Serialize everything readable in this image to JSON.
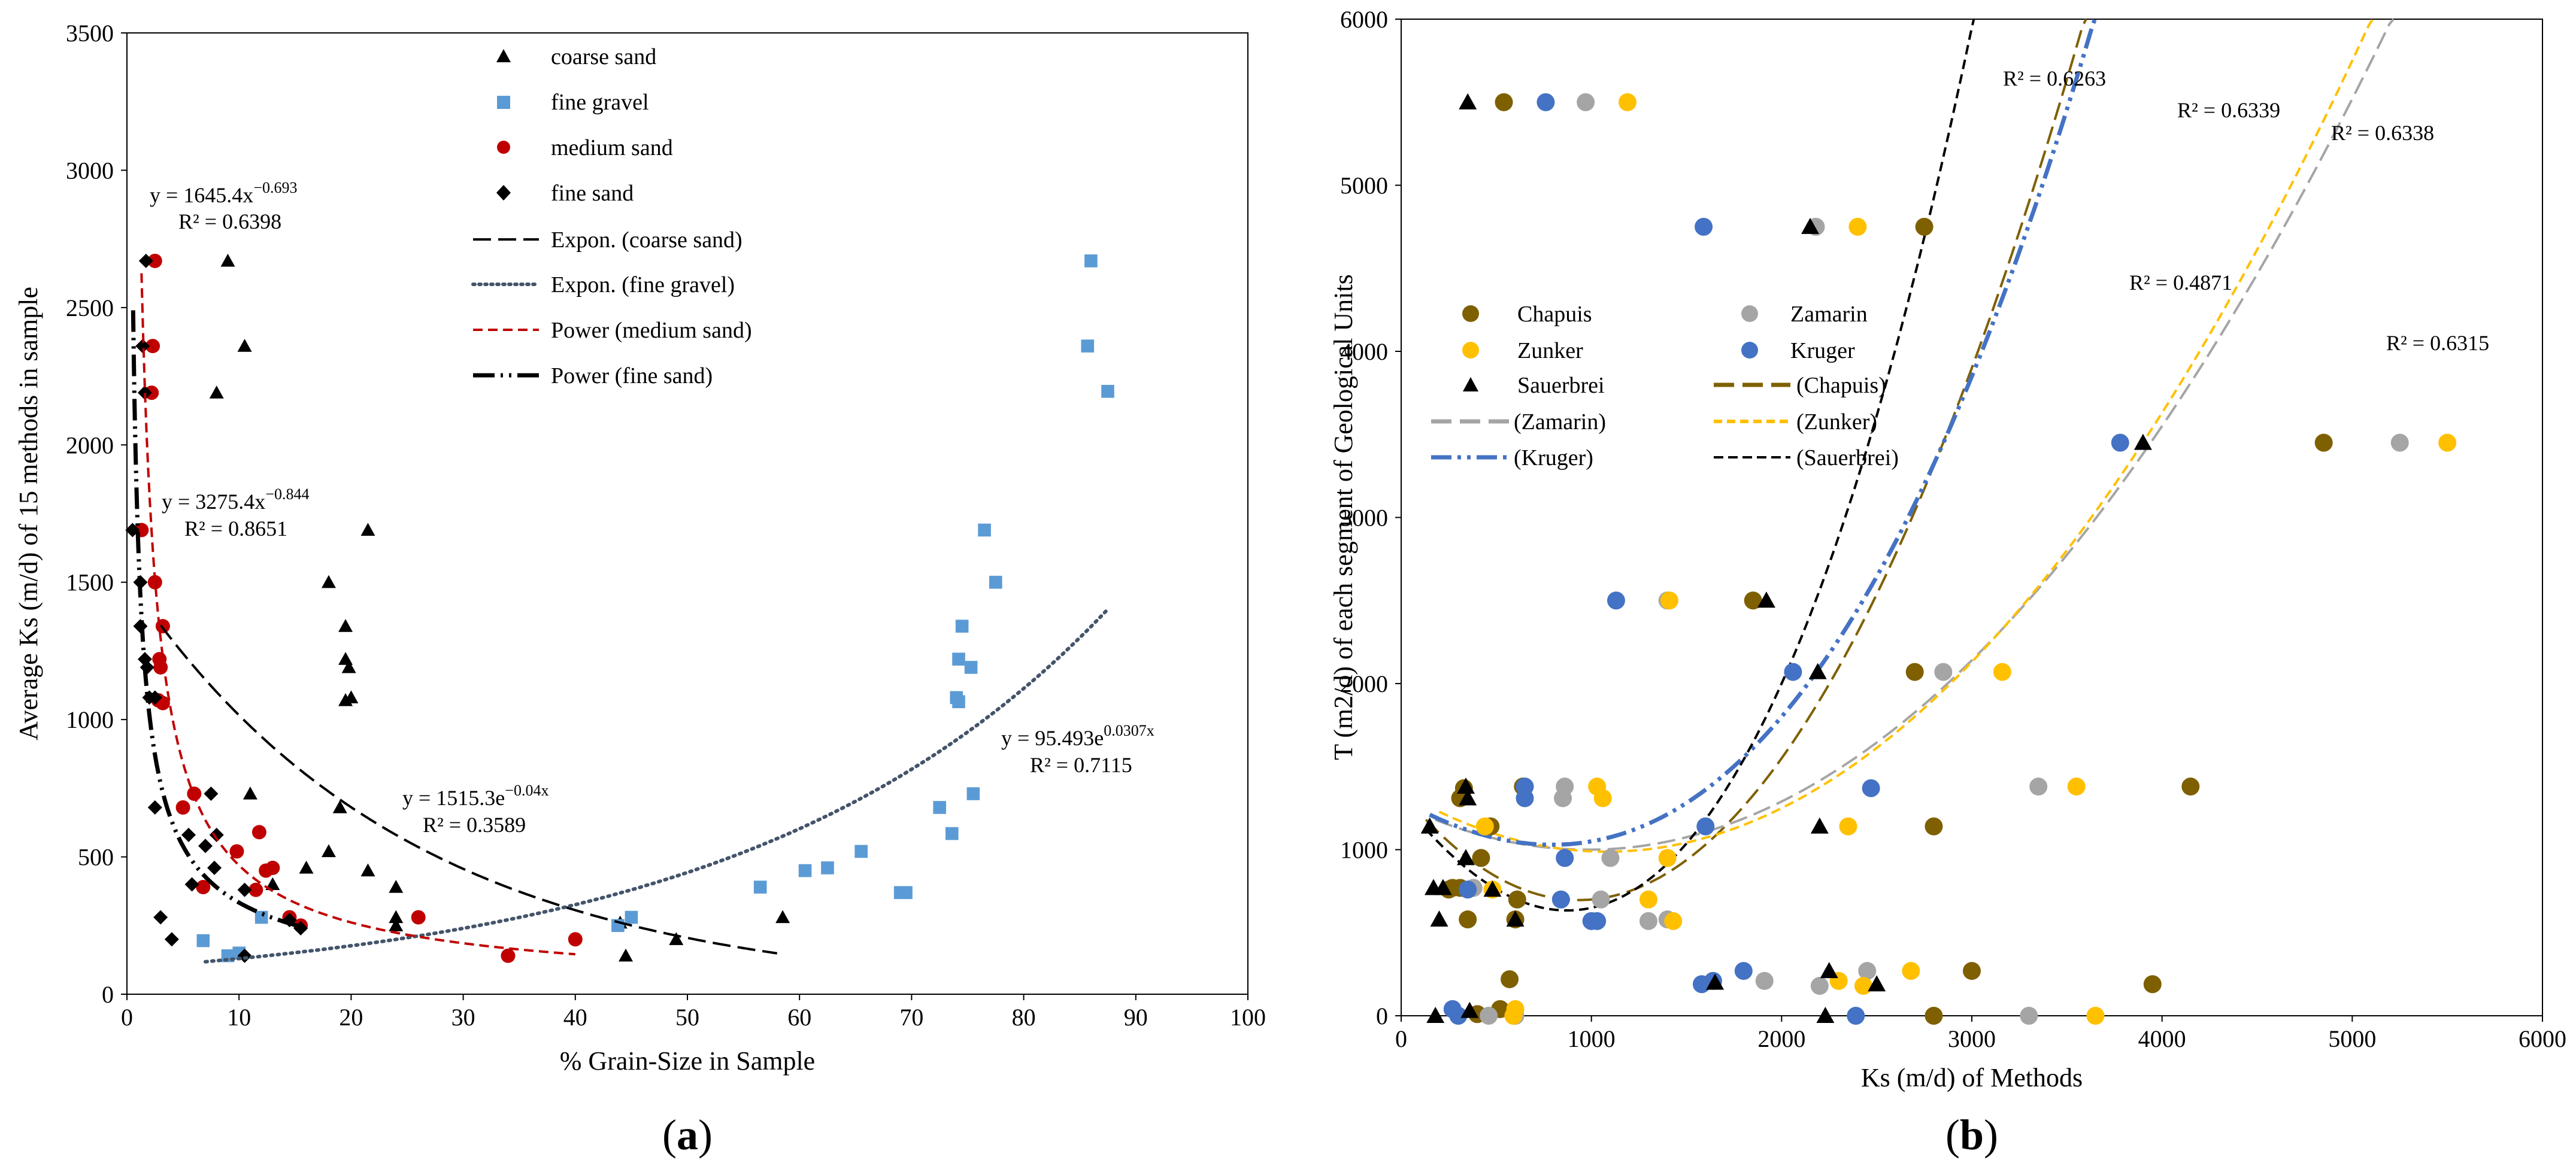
{
  "chart_data": [
    {
      "id": "a",
      "type": "scatter",
      "panel_label": "a",
      "xlabel": "% Grain-Size in Sample",
      "ylabel": "Average Ks (m/d) of 15 methods in sample",
      "xlim": [
        0,
        100
      ],
      "ylim": [
        0,
        3500
      ],
      "xticks": [
        0,
        10,
        20,
        30,
        40,
        50,
        60,
        70,
        80,
        90,
        100
      ],
      "yticks": [
        0,
        500,
        1000,
        1500,
        2000,
        2500,
        3000,
        3500
      ],
      "series": [
        {
          "name": "coarse sand",
          "marker": "triangle",
          "color": "#000000",
          "points": [
            [
              9,
              2670
            ],
            [
              8,
              2190
            ],
            [
              10.5,
              2360
            ],
            [
              21.5,
              1690
            ],
            [
              18,
              1500
            ],
            [
              19.5,
              1340
            ],
            [
              19.5,
              1220
            ],
            [
              19.8,
              1190
            ],
            [
              19.5,
              1070
            ],
            [
              20,
              1080
            ],
            [
              11,
              730
            ],
            [
              19,
              680
            ],
            [
              18,
              520
            ],
            [
              16,
              460
            ],
            [
              13,
              400
            ],
            [
              21.5,
              450
            ],
            [
              24,
              390
            ],
            [
              24,
              280
            ],
            [
              24,
              250
            ],
            [
              44,
              260
            ],
            [
              44.5,
              140
            ],
            [
              49,
              200
            ],
            [
              58.5,
              280
            ]
          ]
        },
        {
          "name": "fine gravel",
          "marker": "square",
          "color": "#5B9BD5",
          "points": [
            [
              86,
              2670
            ],
            [
              85.7,
              2360
            ],
            [
              87.5,
              2195
            ],
            [
              76.5,
              1690
            ],
            [
              77.5,
              1500
            ],
            [
              74.5,
              1340
            ],
            [
              74.2,
              1220
            ],
            [
              75.3,
              1190
            ],
            [
              74,
              1080
            ],
            [
              74.2,
              1065
            ],
            [
              75.5,
              730
            ],
            [
              72.5,
              680
            ],
            [
              73.6,
              585
            ],
            [
              65.5,
              520
            ],
            [
              62.5,
              460
            ],
            [
              60.5,
              450
            ],
            [
              56.5,
              390
            ],
            [
              69.5,
              370
            ],
            [
              69,
              370
            ],
            [
              45,
              280
            ],
            [
              43.8,
              250
            ],
            [
              12,
              280
            ],
            [
              10,
              150
            ],
            [
              9,
              140
            ],
            [
              6.8,
              195
            ]
          ]
        },
        {
          "name": "medium sand",
          "marker": "circle",
          "color": "#C00000",
          "points": [
            [
              2.5,
              2670
            ],
            [
              2.3,
              2360
            ],
            [
              2.2,
              2190
            ],
            [
              1.3,
              1690
            ],
            [
              2.5,
              1500
            ],
            [
              3.2,
              1340
            ],
            [
              2.9,
              1220
            ],
            [
              3,
              1190
            ],
            [
              2.8,
              1070
            ],
            [
              3.2,
              1060
            ],
            [
              6,
              730
            ],
            [
              5,
              680
            ],
            [
              11.8,
              590
            ],
            [
              9.8,
              520
            ],
            [
              13,
              460
            ],
            [
              12.4,
              450
            ],
            [
              6.8,
              390
            ],
            [
              11.5,
              380
            ],
            [
              14.5,
              280
            ],
            [
              26,
              280
            ],
            [
              15.5,
              250
            ],
            [
              34,
              140
            ],
            [
              40,
              200
            ]
          ]
        },
        {
          "name": "fine sand",
          "marker": "diamond",
          "color": "#000000",
          "points": [
            [
              1.7,
              2670
            ],
            [
              1.4,
              2360
            ],
            [
              1.6,
              2190
            ],
            [
              0.5,
              1690
            ],
            [
              1.2,
              1500
            ],
            [
              1.2,
              1340
            ],
            [
              1.6,
              1220
            ],
            [
              1.8,
              1190
            ],
            [
              2,
              1080
            ],
            [
              2.5,
              1080
            ],
            [
              7.5,
              730
            ],
            [
              2.5,
              680
            ],
            [
              5.5,
              580
            ],
            [
              8,
              580
            ],
            [
              7,
              540
            ],
            [
              7.8,
              460
            ],
            [
              5.8,
              400
            ],
            [
              10.5,
              380
            ],
            [
              3,
              280
            ],
            [
              14.5,
              270
            ],
            [
              15.5,
              240
            ],
            [
              4,
              200
            ],
            [
              10.5,
              140
            ]
          ]
        }
      ],
      "trendlines": [
        {
          "name": "Expon. (coarse sand)",
          "model": "exponential",
          "a": 1515.3,
          "b": -0.04,
          "x_range": [
            3,
            58
          ],
          "style": "long-dash",
          "color": "#000000"
        },
        {
          "name": "Expon. (fine gravel)",
          "model": "exponential",
          "a": 95.493,
          "b": 0.0307,
          "x_range": [
            7,
            87.5
          ],
          "style": "dotted",
          "color": "#44546A"
        },
        {
          "name": "Power (medium sand)",
          "model": "power",
          "a": 3275.4,
          "b": -0.844,
          "x_range": [
            1.3,
            40
          ],
          "style": "short-dash",
          "color": "#C00000"
        },
        {
          "name": "Power (fine sand)",
          "model": "power",
          "a": 1645.4,
          "b": -0.693,
          "x_range": [
            0.55,
            15.5
          ],
          "style": "long-dash-dot-dot",
          "color": "#000000"
        }
      ],
      "annotations": [
        {
          "id": "fine_sand",
          "equation_prefix": "y = 1645.4x",
          "exponent": "−0.693",
          "r2": "R² = 0.6398"
        },
        {
          "id": "medium_sand",
          "equation_prefix": "y = 3275.4x",
          "exponent": "−0.844",
          "r2": "R² = 0.8651"
        },
        {
          "id": "coarse_sand",
          "equation_prefix": "y = 1515.3e",
          "exponent": "−0.04x",
          "r2": "R² = 0.3589"
        },
        {
          "id": "fine_gravel",
          "equation_prefix": "y = 95.493e",
          "exponent": "0.0307x",
          "r2": "R² = 0.7115"
        }
      ]
    },
    {
      "id": "b",
      "type": "scatter",
      "panel_label": "b",
      "xlabel": "Ks (m/d) of Methods",
      "ylabel": "T (m2/d) of each segment of Geological Units",
      "xlim": [
        0,
        6000
      ],
      "ylim": [
        0,
        6000
      ],
      "xticks": [
        0,
        1000,
        2000,
        3000,
        4000,
        5000,
        6000
      ],
      "yticks": [
        0,
        1000,
        2000,
        3000,
        4000,
        5000,
        6000
      ],
      "legend_columns": 2,
      "series": [
        {
          "name": "Chapuis",
          "marker": "circle",
          "color": "#7F6000",
          "points": [
            [
              540,
              5500
            ],
            [
              2750,
              4750
            ],
            [
              1850,
              2500
            ],
            [
              2700,
              2070
            ],
            [
              2800,
              1140
            ],
            [
              4150,
              1380
            ],
            [
              4850,
              3450
            ],
            [
              330,
              1370
            ],
            [
              640,
              1380
            ],
            [
              310,
              1310
            ],
            [
              420,
              950
            ],
            [
              470,
              1140
            ],
            [
              610,
              700
            ],
            [
              600,
              580
            ],
            [
              570,
              220
            ],
            [
              250,
              760
            ],
            [
              310,
              770
            ],
            [
              520,
              40
            ],
            [
              400,
              10
            ],
            [
              2800,
              0
            ],
            [
              3000,
              270
            ],
            [
              3950,
              190
            ],
            [
              350,
              580
            ],
            [
              270,
              770
            ]
          ]
        },
        {
          "name": "Zamarin",
          "marker": "circle",
          "color": "#A5A5A5",
          "points": [
            [
              970,
              5500
            ],
            [
              2180,
              4750
            ],
            [
              1400,
              2500
            ],
            [
              2850,
              2070
            ],
            [
              3350,
              1380
            ],
            [
              5250,
              3450
            ],
            [
              860,
              1380
            ],
            [
              850,
              1310
            ],
            [
              1300,
              570
            ],
            [
              1100,
              950
            ],
            [
              1400,
              580
            ],
            [
              1050,
              700
            ],
            [
              1910,
              210
            ],
            [
              2200,
              180
            ],
            [
              2450,
              270
            ],
            [
              3300,
              0
            ],
            [
              380,
              770
            ],
            [
              600,
              0
            ],
            [
              460,
              0
            ]
          ]
        },
        {
          "name": "Zunker",
          "marker": "circle",
          "color": "#FFC000",
          "points": [
            [
              1190,
              5500
            ],
            [
              2400,
              4750
            ],
            [
              1410,
              2500
            ],
            [
              3160,
              2070
            ],
            [
              2350,
              1140
            ],
            [
              3550,
              1380
            ],
            [
              5500,
              3450
            ],
            [
              1030,
              1380
            ],
            [
              1060,
              1310
            ],
            [
              440,
              1140
            ],
            [
              1400,
              950
            ],
            [
              1430,
              570
            ],
            [
              480,
              760
            ],
            [
              1300,
              700
            ],
            [
              2680,
              270
            ],
            [
              2300,
              210
            ],
            [
              2430,
              180
            ],
            [
              3650,
              0
            ],
            [
              590,
              0
            ],
            [
              600,
              40
            ]
          ]
        },
        {
          "name": "Kruger",
          "marker": "circle",
          "color": "#4472C4",
          "points": [
            [
              760,
              5500
            ],
            [
              1590,
              4750
            ],
            [
              1130,
              2500
            ],
            [
              2060,
              2070
            ],
            [
              2470,
              1370
            ],
            [
              3780,
              3450
            ],
            [
              650,
              1380
            ],
            [
              650,
              1310
            ],
            [
              1600,
              1140
            ],
            [
              860,
              950
            ],
            [
              1030,
              570
            ],
            [
              1000,
              570
            ],
            [
              840,
              700
            ],
            [
              350,
              760
            ],
            [
              1580,
              190
            ],
            [
              1800,
              270
            ],
            [
              1640,
              210
            ],
            [
              2390,
              0
            ],
            [
              270,
              40
            ],
            [
              300,
              0
            ]
          ]
        },
        {
          "name": "Sauerbrei",
          "marker": "triangle",
          "color": "#000000",
          "points": [
            [
              350,
              5500
            ],
            [
              2150,
              4750
            ],
            [
              1920,
              2500
            ],
            [
              2190,
              2070
            ],
            [
              2200,
              1140
            ],
            [
              3900,
              3450
            ],
            [
              340,
              1380
            ],
            [
              350,
              1310
            ],
            [
              340,
              950
            ],
            [
              480,
              760
            ],
            [
              600,
              580
            ],
            [
              150,
              1140
            ],
            [
              220,
              770
            ],
            [
              170,
              770
            ],
            [
              200,
              580
            ],
            [
              1650,
              200
            ],
            [
              2250,
              270
            ],
            [
              2500,
              190
            ],
            [
              2230,
              0
            ],
            [
              180,
              0
            ],
            [
              360,
              30
            ]
          ]
        }
      ],
      "trendlines": [
        {
          "name": "(Chapuis)",
          "model": "polynomial",
          "coefficients": [
            1350,
            -1.4,
            0.00075
          ],
          "x_range": [
            130,
            5200
          ],
          "r2": "R² = 0.6338",
          "style": "long-dash",
          "color": "#7F6000"
        },
        {
          "name": "(Zamarin)",
          "model": "polynomial",
          "coefficients": [
            1270,
            -0.55,
            0.00028
          ],
          "x_range": [
            180,
            5800
          ],
          "r2": "R² = 0.4871",
          "style": "long-dash",
          "color": "#A5A5A5"
        },
        {
          "name": "(Zunker)",
          "model": "polynomial",
          "coefficients": [
            1350,
            -0.67,
            0.00031
          ],
          "x_range": [
            200,
            6000
          ],
          "r2": "R² = 0.6315",
          "style": "short-dash",
          "color": "#FFC000"
        },
        {
          "name": "(Kruger)",
          "model": "polynomial",
          "coefficients": [
            1300,
            -0.65,
            0.00035,
            5e-08
          ],
          "x_range": [
            150,
            4500
          ],
          "r2": "R² = 0.6339",
          "style": "dash-dot-dot",
          "color": "#4472C4"
        },
        {
          "name": "(Sauerbrei)",
          "model": "polynomial",
          "coefficients": [
            1300,
            -1.45,
            0.0007,
            1e-07
          ],
          "x_range": [
            130,
            4200
          ],
          "r2": "R² = 0.6263",
          "style": "short-dash",
          "color": "#000000"
        }
      ]
    }
  ]
}
